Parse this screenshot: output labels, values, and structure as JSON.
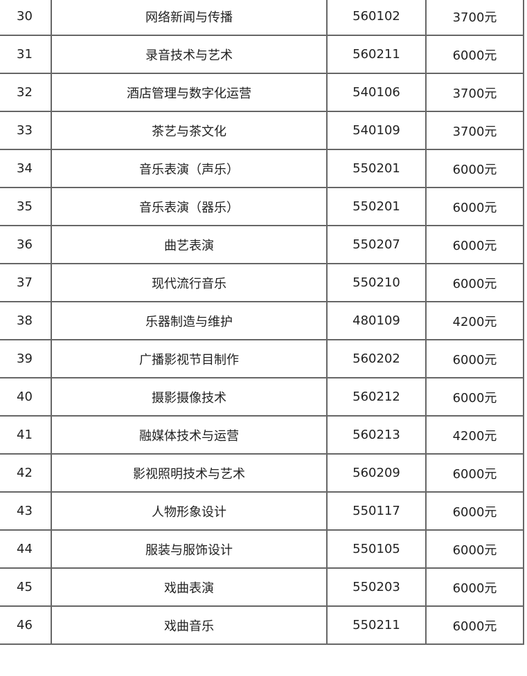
{
  "table": {
    "rows": [
      {
        "no": "30",
        "name": "网络新闻与传播",
        "code": "560102",
        "fee": "3700元"
      },
      {
        "no": "31",
        "name": "录音技术与艺术",
        "code": "560211",
        "fee": "6000元"
      },
      {
        "no": "32",
        "name": "酒店管理与数字化运营",
        "code": "540106",
        "fee": "3700元"
      },
      {
        "no": "33",
        "name": "茶艺与茶文化",
        "code": "540109",
        "fee": "3700元"
      },
      {
        "no": "34",
        "name": "音乐表演（声乐）",
        "code": "550201",
        "fee": "6000元"
      },
      {
        "no": "35",
        "name": "音乐表演（器乐）",
        "code": "550201",
        "fee": "6000元"
      },
      {
        "no": "36",
        "name": "曲艺表演",
        "code": "550207",
        "fee": "6000元"
      },
      {
        "no": "37",
        "name": "现代流行音乐",
        "code": "550210",
        "fee": "6000元"
      },
      {
        "no": "38",
        "name": "乐器制造与维护",
        "code": "480109",
        "fee": "4200元"
      },
      {
        "no": "39",
        "name": "广播影视节目制作",
        "code": "560202",
        "fee": "6000元"
      },
      {
        "no": "40",
        "name": "摄影摄像技术",
        "code": "560212",
        "fee": "6000元"
      },
      {
        "no": "41",
        "name": "融媒体技术与运营",
        "code": "560213",
        "fee": "4200元"
      },
      {
        "no": "42",
        "name": "影视照明技术与艺术",
        "code": "560209",
        "fee": "6000元"
      },
      {
        "no": "43",
        "name": "人物形象设计",
        "code": "550117",
        "fee": "6000元"
      },
      {
        "no": "44",
        "name": "服装与服饰设计",
        "code": "550105",
        "fee": "6000元"
      },
      {
        "no": "45",
        "name": "戏曲表演",
        "code": "550203",
        "fee": "6000元"
      },
      {
        "no": "46",
        "name": "戏曲音乐",
        "code": "550211",
        "fee": "6000元"
      }
    ]
  }
}
